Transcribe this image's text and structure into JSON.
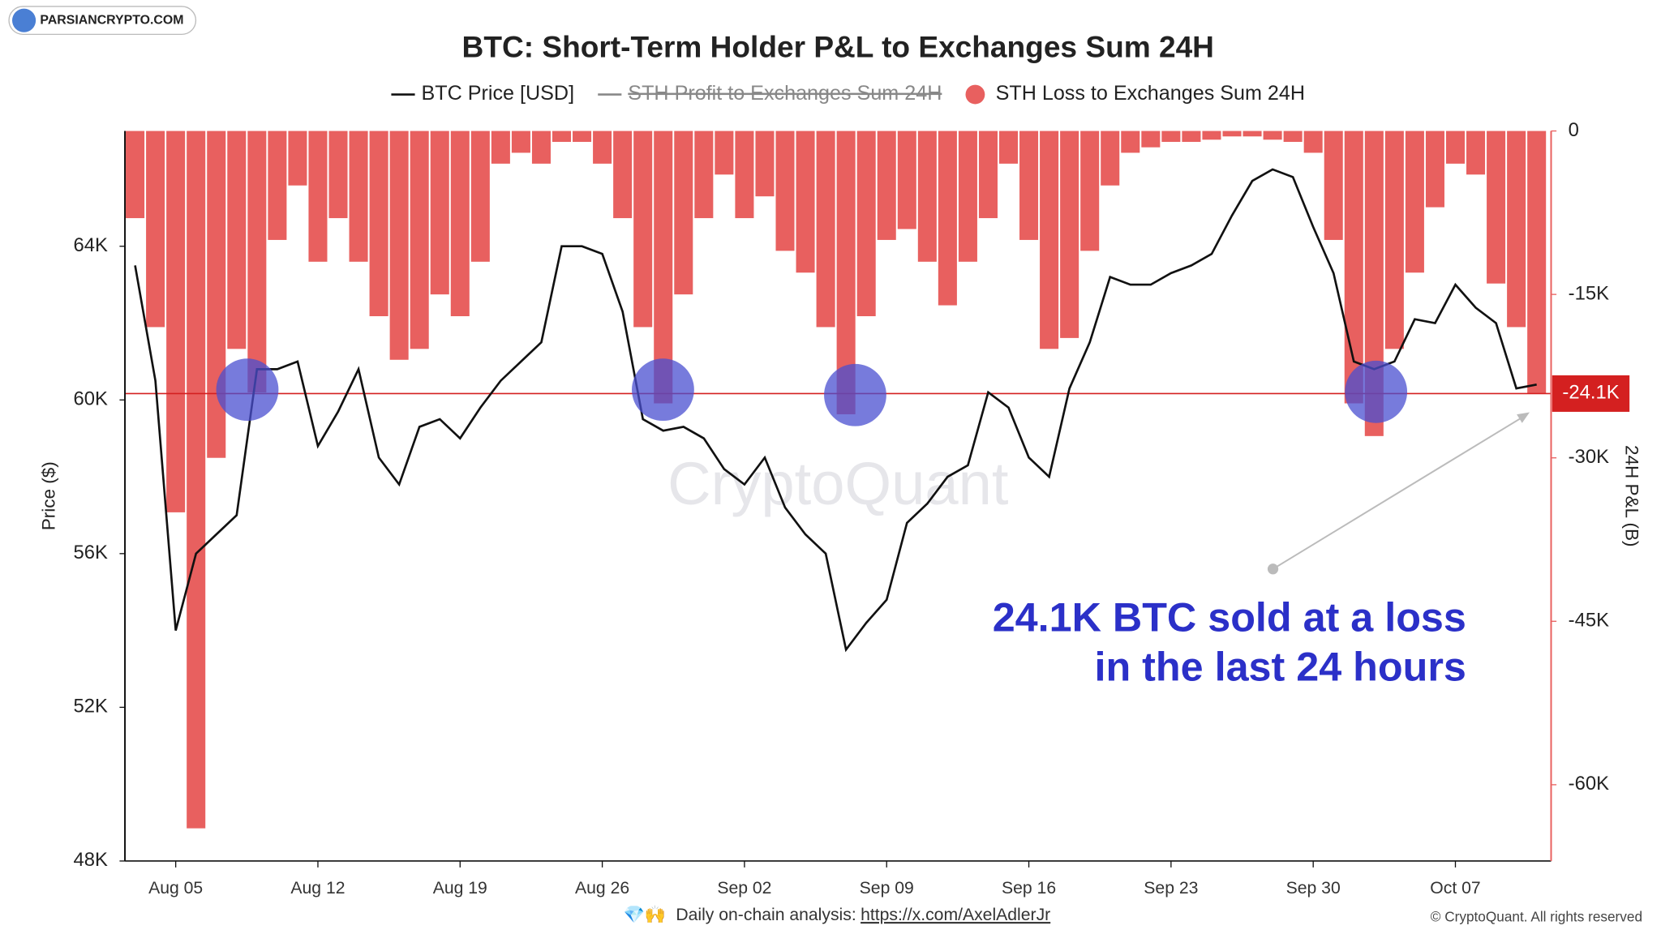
{
  "chart_data": {
    "type": "line-bar",
    "title": "BTC: Short-Term Holder P&L to Exchanges Sum 24H",
    "logo": "PARSIANCRYPTO.COM",
    "watermark": "CryptoQuant",
    "ylabel": "Price ($)",
    "y2label": "24H P&L (B)",
    "annotation": [
      "24.1K BTC sold at a loss",
      "in the last 24 hours"
    ],
    "footer_icons": "💎🙌",
    "footer": "Daily on-chain analysis:",
    "footer_link": "https://x.com/AxelAdlerJr",
    "copyright": "© CryptoQuant. All rights reserved",
    "categories": [
      "Aug 03",
      "Aug 04",
      "Aug 05",
      "Aug 06",
      "Aug 07",
      "Aug 08",
      "Aug 09",
      "Aug 10",
      "Aug 11",
      "Aug 12",
      "Aug 13",
      "Aug 14",
      "Aug 15",
      "Aug 16",
      "Aug 17",
      "Aug 18",
      "Aug 19",
      "Aug 20",
      "Aug 21",
      "Aug 22",
      "Aug 23",
      "Aug 24",
      "Aug 25",
      "Aug 26",
      "Aug 27",
      "Aug 28",
      "Aug 29",
      "Aug 30",
      "Aug 31",
      "Sep 01",
      "Sep 02",
      "Sep 03",
      "Sep 04",
      "Sep 05",
      "Sep 06",
      "Sep 07",
      "Sep 08",
      "Sep 09",
      "Sep 10",
      "Sep 11",
      "Sep 12",
      "Sep 13",
      "Sep 14",
      "Sep 15",
      "Sep 16",
      "Sep 17",
      "Sep 18",
      "Sep 19",
      "Sep 20",
      "Sep 21",
      "Sep 22",
      "Sep 23",
      "Sep 24",
      "Sep 25",
      "Sep 26",
      "Sep 27",
      "Sep 28",
      "Sep 29",
      "Sep 30",
      "Oct 01",
      "Oct 02",
      "Oct 03",
      "Oct 04",
      "Oct 05",
      "Oct 06",
      "Oct 07",
      "Oct 08",
      "Oct 09",
      "Oct 10",
      "Oct 11"
    ],
    "xticks": [
      "Aug 05",
      "Aug 12",
      "Aug 19",
      "Aug 26",
      "Sep 02",
      "Sep 09",
      "Sep 16",
      "Sep 23",
      "Sep 30",
      "Oct 07"
    ],
    "series": [
      {
        "name": "BTC Price [USD]",
        "color": "#111111",
        "kind": "line",
        "values": [
          63500,
          60500,
          54000,
          56000,
          56500,
          57000,
          60800,
          60800,
          61000,
          58800,
          59700,
          60800,
          58500,
          57800,
          59300,
          59500,
          59000,
          59800,
          60500,
          61000,
          61500,
          64000,
          64000,
          63800,
          62300,
          59500,
          59200,
          59300,
          59000,
          58200,
          57800,
          58500,
          57200,
          56500,
          56000,
          53500,
          54200,
          54800,
          56800,
          57300,
          58000,
          58300,
          60200,
          59800,
          58500,
          58000,
          60300,
          61500,
          63200,
          63000,
          63000,
          63300,
          63500,
          63800,
          64800,
          65700,
          66000,
          65800,
          64500,
          63300,
          61000,
          60800,
          61000,
          62100,
          62000,
          63000,
          62400,
          62000,
          60300,
          60400
        ]
      },
      {
        "name": "STH Profit to Exchanges Sum 24H",
        "color": "#888888",
        "kind": "line",
        "hidden": true
      },
      {
        "name": "STH Loss to Exchanges Sum 24H",
        "color": "#e8605f",
        "kind": "bar",
        "axis": "y2",
        "values": [
          -8000,
          -18000,
          -35000,
          -64000,
          -30000,
          -20000,
          -24000,
          -10000,
          -5000,
          -12000,
          -8000,
          -12000,
          -17000,
          -21000,
          -20000,
          -15000,
          -17000,
          -12000,
          -3000,
          -2000,
          -3000,
          -1000,
          -1000,
          -3000,
          -8000,
          -18000,
          -25000,
          -15000,
          -8000,
          -4000,
          -8000,
          -6000,
          -11000,
          -13000,
          -18000,
          -26000,
          -17000,
          -10000,
          -9000,
          -12000,
          -16000,
          -12000,
          -8000,
          -3000,
          -10000,
          -20000,
          -19000,
          -11000,
          -5000,
          -2000,
          -1500,
          -1000,
          -1000,
          -800,
          -500,
          -500,
          -800,
          -1000,
          -2000,
          -10000,
          -25000,
          -28000,
          -20000,
          -13000,
          -7000,
          -3000,
          -4000,
          -14000,
          -18000,
          -24100
        ]
      }
    ],
    "ylim": [
      48000,
      67000
    ],
    "yticks": [
      {
        "value": 48000,
        "label": "48K"
      },
      {
        "value": 52000,
        "label": "52K"
      },
      {
        "value": 56000,
        "label": "56K"
      },
      {
        "value": 60000,
        "label": "60K"
      },
      {
        "value": 64000,
        "label": "64K"
      }
    ],
    "y2lim": [
      -67000,
      0
    ],
    "y2ticks": [
      {
        "value": -60000,
        "label": "-60K"
      },
      {
        "value": -45000,
        "label": "-45K"
      },
      {
        "value": -30000,
        "label": "-30K"
      },
      {
        "value": -15000,
        "label": "-15K"
      },
      0
    ],
    "reference": {
      "value": -24100,
      "label": "-24.1K",
      "axis": "y2",
      "color": "#d42020"
    }
  }
}
